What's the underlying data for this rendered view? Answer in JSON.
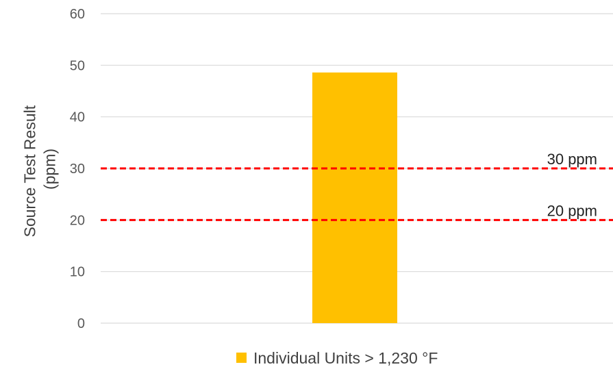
{
  "chart_data": {
    "type": "bar",
    "title": "",
    "categories": [
      ""
    ],
    "series": [
      {
        "name": "Individual Units > 1,230 °F",
        "values": [
          48.6
        ],
        "color": "#FFC000"
      }
    ],
    "ylabel_lines": [
      "Source Test Result",
      "(ppm)"
    ],
    "xlabel": "",
    "ylim": [
      0,
      60
    ],
    "yticks": [
      0,
      10,
      20,
      30,
      40,
      50,
      60
    ],
    "grid": true,
    "legend_position": "bottom",
    "reference_lines": [
      {
        "value": 30,
        "label": "30 ppm",
        "color": "#FF0000",
        "style": "dashed"
      },
      {
        "value": 20,
        "label": "20 ppm",
        "color": "#FF0000",
        "style": "dashed"
      }
    ],
    "gridline_color": "#D9D9D9"
  }
}
